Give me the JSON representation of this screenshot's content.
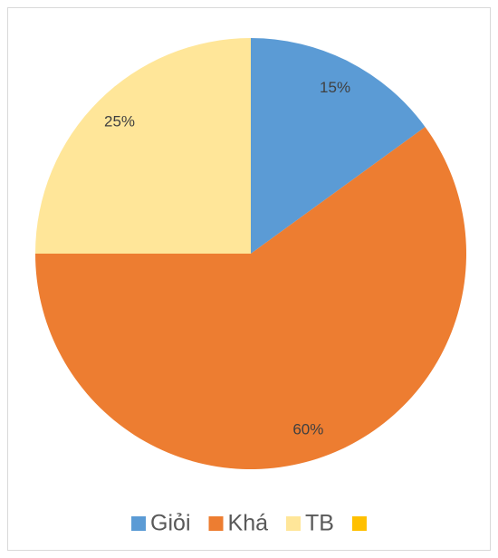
{
  "chart_data": {
    "type": "pie",
    "categories": [
      "Giỏi",
      "Khá",
      "TB",
      null
    ],
    "values": [
      15,
      60,
      25,
      0
    ],
    "value_labels": [
      "15%",
      "60%",
      "25%",
      null
    ],
    "colors": [
      "#5b9bd5",
      "#ed7d31",
      "#ffe699",
      "#ffc000"
    ],
    "legend": "bottom"
  }
}
